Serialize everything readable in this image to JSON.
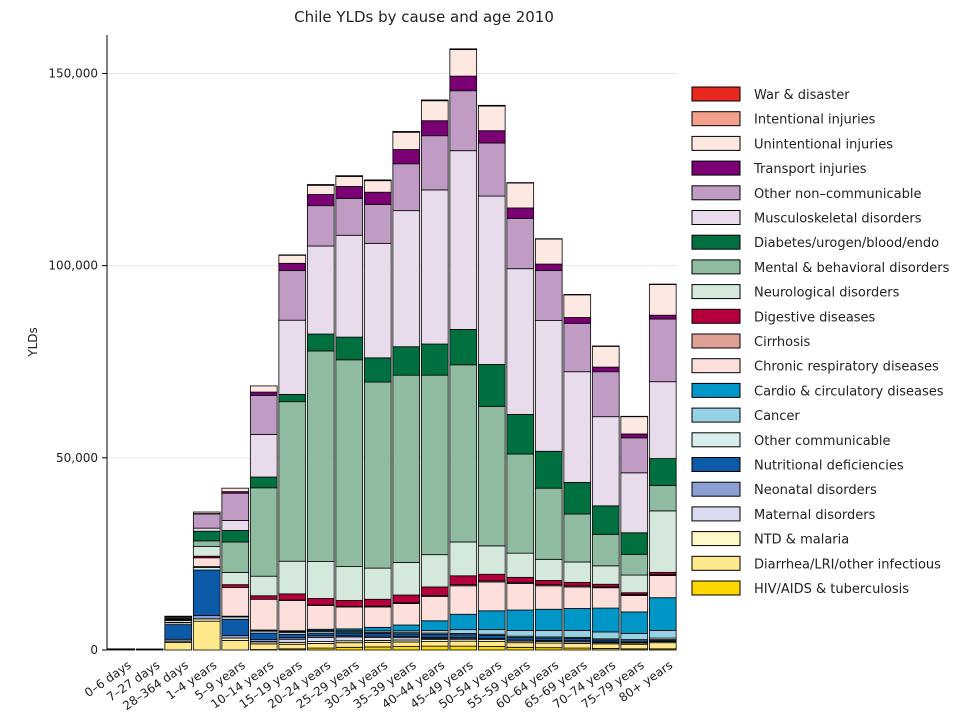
{
  "chart_data": {
    "type": "bar",
    "stacked": true,
    "title": "Chile YLDs by cause and age 2010",
    "xlabel": "",
    "ylabel": "YLDs",
    "ylim": [
      0,
      160000
    ],
    "yticks": [
      0,
      50000,
      100000,
      150000
    ],
    "ytick_labels": [
      "0",
      "50,000",
      "100,000",
      "150,000"
    ],
    "grid": true,
    "legend_position": "right",
    "categories": [
      "0–6 days",
      "7–27 days",
      "28–364 days",
      "1–4 years",
      "5–9 years",
      "10–14 years",
      "15–19 years",
      "20–24 years",
      "25–29 years",
      "30–34 years",
      "35–39 years",
      "40–44 years",
      "45–49 years",
      "50–54 years",
      "55–59 years",
      "60–64 years",
      "65–69 years",
      "70–74 years",
      "75–79 years",
      "80+ years"
    ],
    "series": [
      {
        "name": "HIV/AIDS & tuberculosis",
        "color": "#ffd700",
        "values": [
          0,
          0,
          0,
          0,
          0,
          100,
          300,
          500,
          700,
          800,
          900,
          1000,
          1000,
          900,
          700,
          600,
          500,
          400,
          300,
          300
        ]
      },
      {
        "name": "Diarrhea/LRI/other infectious",
        "color": "#ffe98c",
        "values": [
          100,
          100,
          2000,
          7500,
          2500,
          1500,
          1200,
          1200,
          1200,
          1200,
          1200,
          1200,
          1300,
          1300,
          1200,
          1200,
          1200,
          1200,
          1200,
          1600
        ]
      },
      {
        "name": "NTD & malaria",
        "color": "#fff8c8",
        "values": [
          0,
          0,
          300,
          600,
          600,
          500,
          500,
          500,
          500,
          500,
          500,
          500,
          500,
          500,
          400,
          400,
          400,
          300,
          300,
          300
        ]
      },
      {
        "name": "Maternal disorders",
        "color": "#dcdcf0",
        "values": [
          0,
          0,
          0,
          0,
          0,
          100,
          800,
          1100,
          1000,
          800,
          600,
          300,
          100,
          0,
          0,
          0,
          0,
          0,
          0,
          0
        ]
      },
      {
        "name": "Neonatal disorders",
        "color": "#8c9fd2",
        "values": [
          150,
          100,
          500,
          900,
          700,
          500,
          400,
          400,
          300,
          300,
          300,
          300,
          300,
          300,
          300,
          300,
          300,
          200,
          200,
          200
        ]
      },
      {
        "name": "Nutritional deficiencies",
        "color": "#0c5aa8",
        "values": [
          50,
          50,
          3800,
          11800,
          4200,
          1700,
          900,
          700,
          700,
          700,
          700,
          800,
          800,
          800,
          700,
          600,
          600,
          500,
          400,
          300
        ]
      },
      {
        "name": "Other communicable",
        "color": "#d6eeee",
        "values": [
          0,
          0,
          500,
          700,
          600,
          500,
          500,
          400,
          300,
          300,
          300,
          300,
          300,
          300,
          300,
          300,
          300,
          300,
          300,
          400
        ]
      },
      {
        "name": "Cancer",
        "color": "#96d2e6",
        "values": [
          0,
          0,
          100,
          200,
          200,
          200,
          200,
          300,
          300,
          400,
          500,
          700,
          1000,
          1200,
          1500,
          1700,
          1800,
          1800,
          1600,
          2000
        ]
      },
      {
        "name": "Cardio & circulatory diseases",
        "color": "#0096c8",
        "values": [
          0,
          0,
          0,
          0,
          0,
          100,
          200,
          300,
          500,
          900,
          1500,
          2500,
          4000,
          4900,
          5300,
          5500,
          5700,
          6200,
          5600,
          8500
        ]
      },
      {
        "name": "Chronic respiratory diseases",
        "color": "#fde0dc",
        "values": [
          0,
          0,
          500,
          2300,
          7500,
          8000,
          7900,
          6200,
          5700,
          5300,
          5600,
          6300,
          7400,
          7500,
          6900,
          6100,
          5600,
          5300,
          4300,
          5800
        ]
      },
      {
        "name": "Cirrhosis",
        "color": "#e1a096",
        "values": [
          0,
          0,
          0,
          0,
          0,
          0,
          100,
          100,
          100,
          200,
          200,
          300,
          300,
          300,
          300,
          300,
          300,
          200,
          200,
          200
        ]
      },
      {
        "name": "Digestive diseases",
        "color": "#b4003c",
        "values": [
          0,
          0,
          100,
          400,
          700,
          900,
          1600,
          1700,
          1600,
          1800,
          2000,
          2200,
          2300,
          1700,
          1300,
          1100,
          900,
          700,
          500,
          600
        ]
      },
      {
        "name": "Neurological disorders",
        "color": "#d5e8dc",
        "values": [
          0,
          0,
          200,
          2500,
          3200,
          5100,
          8500,
          9600,
          8800,
          8100,
          8500,
          8400,
          8800,
          7400,
          6300,
          5500,
          5300,
          4800,
          4600,
          16000
        ]
      },
      {
        "name": "Mental & behavioral disorders",
        "color": "#8fbca0",
        "values": [
          0,
          0,
          0,
          1500,
          7900,
          23000,
          41500,
          54800,
          53800,
          48400,
          48700,
          46700,
          46100,
          36300,
          25800,
          18500,
          12500,
          8200,
          5400,
          6600
        ]
      },
      {
        "name": "Diabetes/urogen/blood/endo",
        "color": "#007040",
        "values": [
          0,
          0,
          300,
          2500,
          3000,
          2800,
          1900,
          4400,
          5900,
          6300,
          7400,
          8100,
          9200,
          10900,
          10300,
          9600,
          8200,
          7400,
          5600,
          7000
        ]
      },
      {
        "name": "Musculoskeletal disorders",
        "color": "#e8dcec",
        "values": [
          0,
          0,
          0,
          800,
          2600,
          11100,
          19300,
          22900,
          26500,
          29800,
          35400,
          40100,
          46500,
          43800,
          37900,
          34000,
          28800,
          23200,
          15600,
          20000
        ]
      },
      {
        "name": "Other non–communicable",
        "color": "#c09cc4",
        "values": [
          0,
          0,
          300,
          3700,
          7100,
          10100,
          12900,
          10500,
          9600,
          10100,
          12200,
          14100,
          15600,
          13800,
          13100,
          13000,
          12600,
          11700,
          9100,
          16300
        ]
      },
      {
        "name": "Transport injuries",
        "color": "#7a0074",
        "values": [
          0,
          0,
          0,
          100,
          400,
          900,
          1900,
          2900,
          3100,
          3200,
          3700,
          3900,
          3800,
          3200,
          2700,
          1700,
          1500,
          1200,
          1000,
          1000
        ]
      },
      {
        "name": "Unintentional injuries",
        "color": "#fde9e2",
        "values": [
          0,
          0,
          200,
          400,
          900,
          1600,
          2100,
          2400,
          2600,
          3000,
          4500,
          5200,
          6900,
          6400,
          6500,
          6500,
          5900,
          5400,
          4500,
          8000
        ]
      },
      {
        "name": "Intentional injuries",
        "color": "#f5a08a",
        "values": [
          0,
          0,
          0,
          0,
          0,
          0,
          100,
          200,
          200,
          200,
          200,
          200,
          200,
          200,
          100,
          100,
          100,
          100,
          100,
          100
        ]
      },
      {
        "name": "War & disaster",
        "color": "#e8281e",
        "values": [
          0,
          0,
          0,
          0,
          0,
          0,
          0,
          0,
          0,
          0,
          0,
          0,
          0,
          0,
          0,
          0,
          0,
          0,
          0,
          0
        ]
      }
    ]
  }
}
